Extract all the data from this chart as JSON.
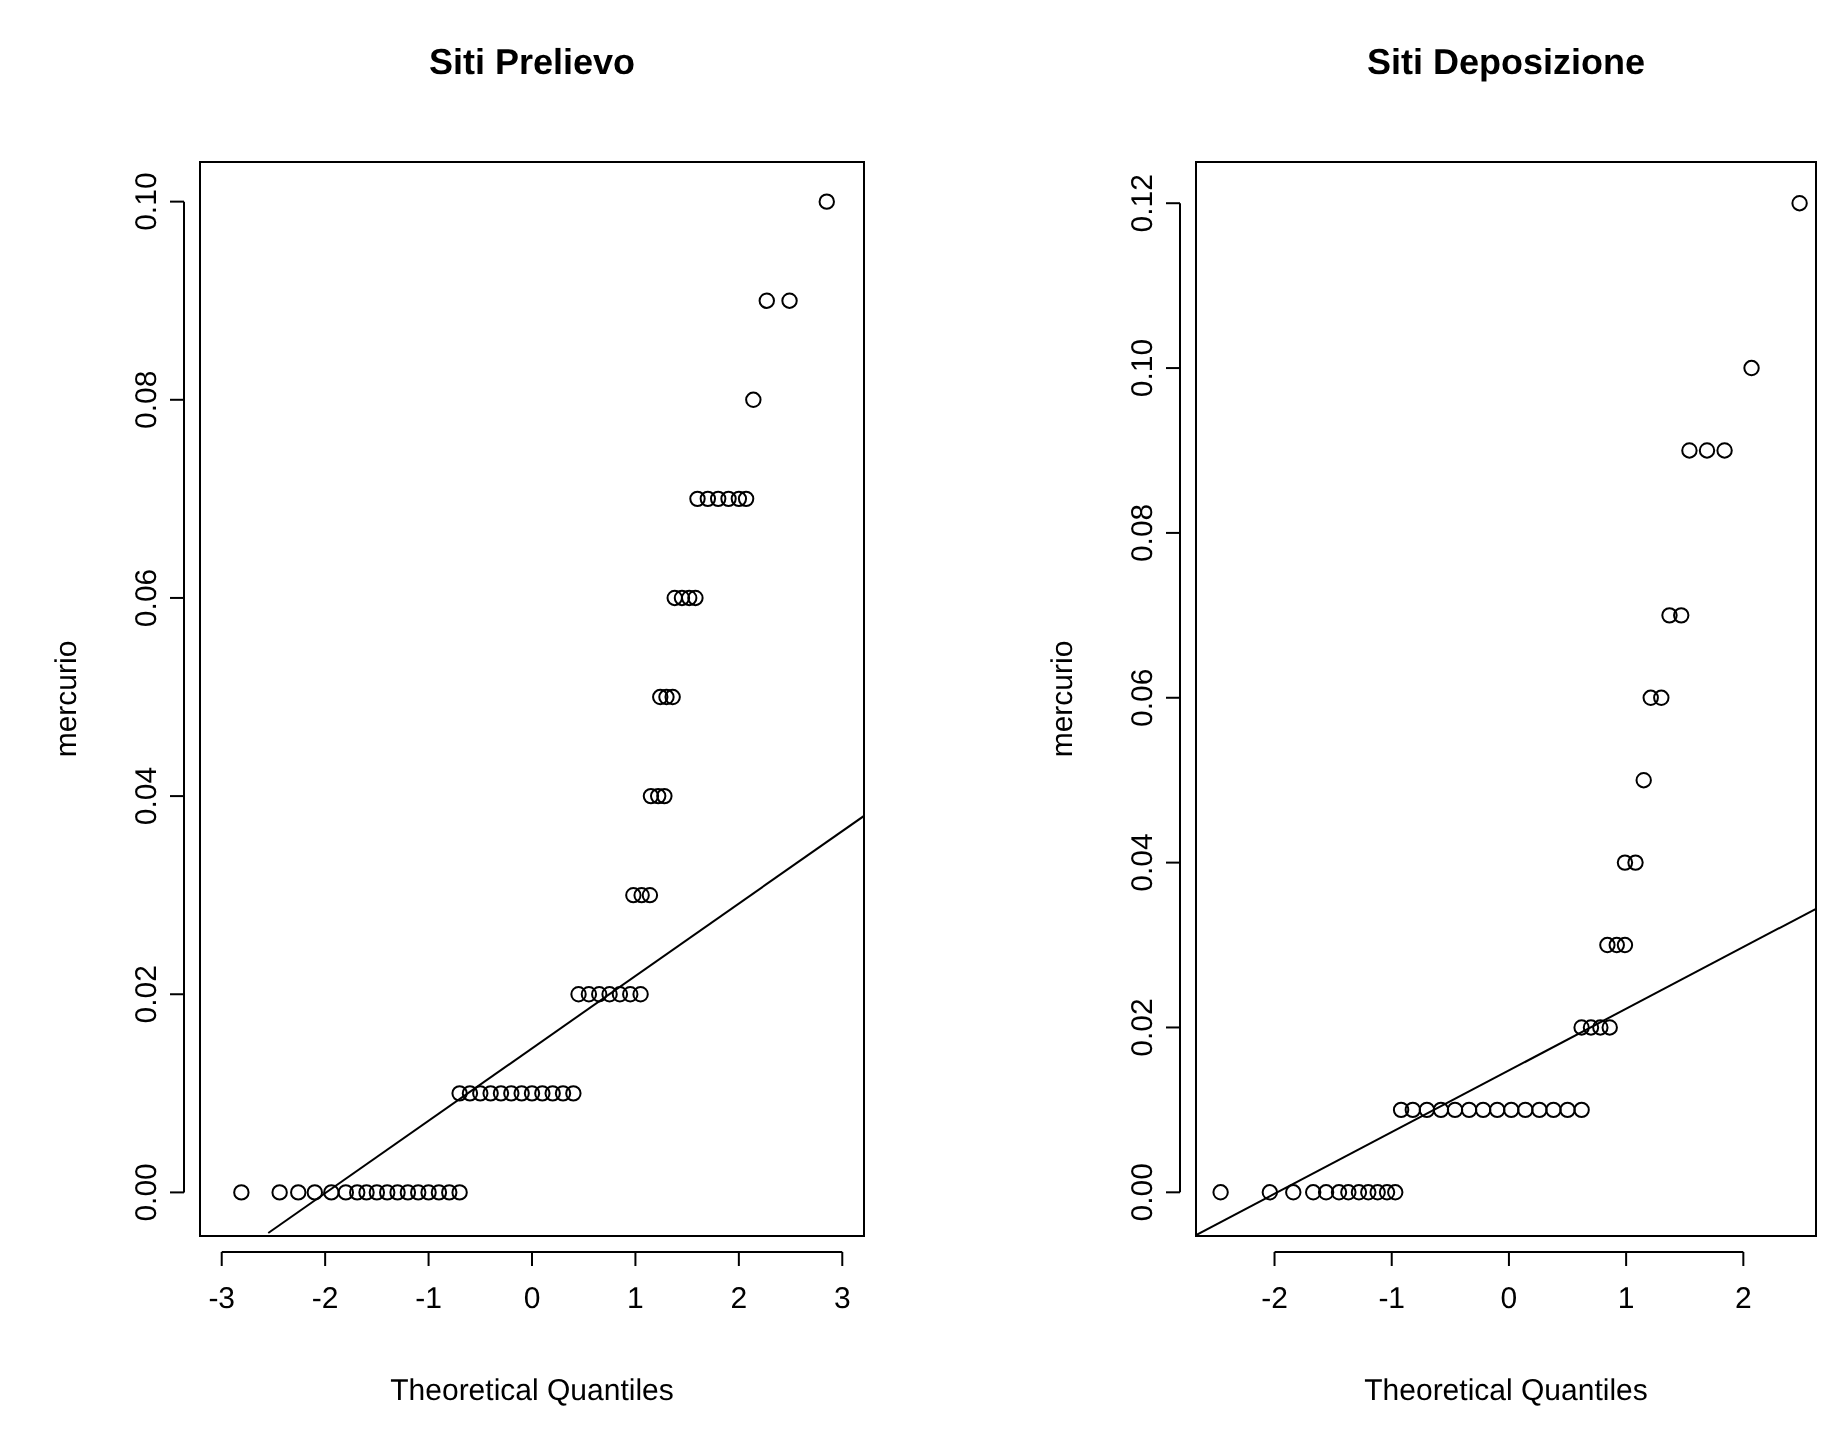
{
  "chart_data": [
    {
      "type": "scatter",
      "title": "Siti Prelievo",
      "xlabel": "Theoretical Quantiles",
      "ylabel": "mercurio",
      "grid": false,
      "xlim": [
        -3.21,
        3.21
      ],
      "ylim": [
        -0.0044,
        0.104
      ],
      "xticks": [
        -3,
        -2,
        -1,
        0,
        1,
        2,
        3
      ],
      "yticks": [
        {
          "value": 0,
          "label": "0.00"
        },
        {
          "value": 0.02,
          "label": "0.02"
        },
        {
          "value": 0.04,
          "label": "0.04"
        },
        {
          "value": 0.06,
          "label": "0.06"
        },
        {
          "value": 0.08,
          "label": "0.08"
        },
        {
          "value": 0.1,
          "label": "0.10"
        }
      ],
      "series": [
        {
          "marker": "circle",
          "color": "#000000",
          "x": [
            -2.81,
            -2.44,
            -2.26,
            -2.1,
            -1.94,
            -1.8,
            -1.69,
            -1.6,
            -1.5,
            -1.4,
            -1.3,
            -1.2,
            -1.1,
            -1.0,
            -0.9,
            -0.8,
            -0.7,
            -0.7,
            -0.6,
            -0.5,
            -0.4,
            -0.3,
            -0.2,
            -0.1,
            0,
            0.1,
            0.2,
            0.3,
            0.4,
            0.45,
            0.55,
            0.65,
            0.75,
            0.85,
            0.95,
            1.05,
            0.98,
            1.06,
            1.14,
            1.15,
            1.22,
            1.28,
            1.24,
            1.3,
            1.36,
            1.38,
            1.45,
            1.52,
            1.58,
            1.6,
            1.7,
            1.8,
            1.9,
            2.0,
            2.07,
            2.14,
            2.27,
            2.49,
            2.85
          ],
          "values": [
            0,
            0,
            0,
            0,
            0,
            0,
            0,
            0,
            0,
            0,
            0,
            0,
            0,
            0,
            0,
            0,
            0,
            0.01,
            0.01,
            0.01,
            0.01,
            0.01,
            0.01,
            0.01,
            0.01,
            0.01,
            0.01,
            0.01,
            0.01,
            0.02,
            0.02,
            0.02,
            0.02,
            0.02,
            0.02,
            0.02,
            0.03,
            0.03,
            0.03,
            0.04,
            0.04,
            0.04,
            0.05,
            0.05,
            0.05,
            0.06,
            0.06,
            0.06,
            0.06,
            0.07,
            0.07,
            0.07,
            0.07,
            0.07,
            0.07,
            0.08,
            0.09,
            0.09,
            0.1
          ]
        },
        {
          "type": "line",
          "color": "#000000",
          "x": [
            -2.55,
            3.21
          ],
          "values": [
            -0.0041,
            0.038
          ]
        }
      ]
    },
    {
      "type": "scatter",
      "title": "Siti Deposizione",
      "xlabel": "Theoretical Quantiles",
      "ylabel": "mercurio",
      "grid": false,
      "xlim": [
        -2.67,
        2.62
      ],
      "ylim": [
        -0.0053,
        0.125
      ],
      "xticks": [
        -2,
        -1,
        0,
        1,
        2
      ],
      "yticks": [
        {
          "value": 0,
          "label": "0.00"
        },
        {
          "value": 0.02,
          "label": "0.02"
        },
        {
          "value": 0.04,
          "label": "0.04"
        },
        {
          "value": 0.06,
          "label": "0.06"
        },
        {
          "value": 0.08,
          "label": "0.08"
        },
        {
          "value": 0.1,
          "label": "0.10"
        },
        {
          "value": 0.12,
          "label": "0.12"
        }
      ],
      "series": [
        {
          "marker": "circle",
          "color": "#000000",
          "x": [
            -2.46,
            -2.04,
            -1.84,
            -1.67,
            -1.56,
            -1.45,
            -1.37,
            -1.28,
            -1.2,
            -1.12,
            -1.04,
            -0.97,
            -0.92,
            -0.82,
            -0.7,
            -0.58,
            -0.46,
            -0.34,
            -0.22,
            -0.1,
            0.02,
            0.14,
            0.26,
            0.38,
            0.5,
            0.62,
            0.62,
            0.7,
            0.78,
            0.86,
            0.84,
            0.92,
            0.99,
            0.99,
            1.08,
            1.15,
            1.21,
            1.3,
            1.37,
            1.47,
            1.54,
            1.69,
            1.84,
            2.07,
            2.48
          ],
          "values": [
            0,
            0,
            0,
            0,
            0,
            0,
            0,
            0,
            0,
            0,
            0,
            0,
            0.01,
            0.01,
            0.01,
            0.01,
            0.01,
            0.01,
            0.01,
            0.01,
            0.01,
            0.01,
            0.01,
            0.01,
            0.01,
            0.01,
            0.02,
            0.02,
            0.02,
            0.02,
            0.03,
            0.03,
            0.03,
            0.04,
            0.04,
            0.05,
            0.06,
            0.06,
            0.07,
            0.07,
            0.09,
            0.09,
            0.09,
            0.1,
            0.12
          ]
        },
        {
          "type": "line",
          "color": "#000000",
          "x": [
            -2.67,
            2.62
          ],
          "values": [
            -0.0052,
            0.0344
          ]
        }
      ]
    }
  ]
}
